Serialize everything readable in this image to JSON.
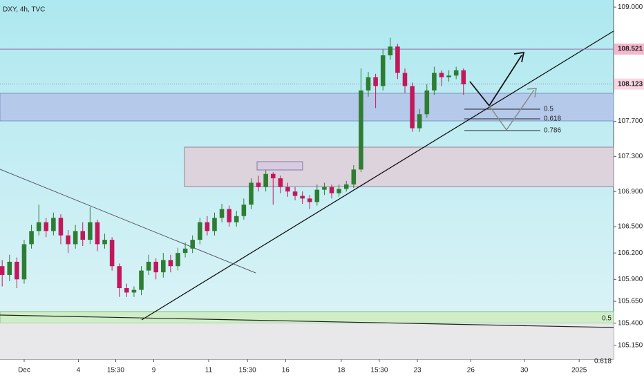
{
  "chart_data": {
    "type": "candlestick",
    "title": "DXY, 4h, TVC",
    "up_color": "#2e7d32",
    "down_color": "#c2185b",
    "grid": false,
    "open": [
      106.05,
      105.95,
      106.1,
      105.9,
      106.3,
      106.45,
      106.55,
      106.45,
      106.6,
      106.4,
      106.3,
      106.45,
      106.35,
      106.55,
      106.3,
      106.35,
      106.05,
      105.8,
      105.75,
      105.78,
      106.0,
      106.1,
      105.98,
      106.12,
      106.05,
      106.2,
      106.25,
      106.35,
      106.55,
      106.45,
      106.6,
      106.7,
      106.55,
      106.62,
      106.75,
      107.0,
      106.95,
      107.1,
      107.05,
      106.95,
      106.9,
      106.85,
      106.82,
      106.78,
      106.92,
      106.95,
      106.88,
      106.93,
      106.98,
      107.15,
      108.05,
      108.2,
      108.1,
      108.45,
      108.55,
      108.25,
      108.1,
      107.62,
      107.78,
      108.05,
      108.25,
      108.2,
      108.22,
      108.28
    ],
    "high": [
      106.12,
      106.18,
      106.15,
      106.35,
      106.52,
      106.75,
      106.6,
      106.66,
      106.64,
      106.46,
      106.52,
      106.55,
      106.72,
      106.58,
      106.42,
      106.38,
      106.08,
      105.85,
      105.82,
      106.05,
      106.18,
      106.14,
      106.2,
      106.18,
      106.26,
      106.32,
      106.4,
      106.6,
      106.62,
      106.66,
      106.76,
      106.74,
      106.68,
      106.82,
      107.05,
      107.08,
      107.14,
      107.12,
      107.08,
      107.0,
      106.95,
      106.9,
      106.86,
      106.98,
      107.0,
      106.98,
      106.98,
      107.02,
      107.2,
      108.3,
      108.26,
      108.24,
      108.52,
      108.65,
      108.58,
      108.3,
      108.14,
      107.84,
      108.12,
      108.32,
      108.28,
      108.28,
      108.32,
      108.3
    ],
    "low": [
      105.82,
      105.88,
      105.8,
      105.85,
      106.25,
      106.4,
      106.38,
      106.4,
      106.3,
      106.2,
      106.25,
      106.28,
      106.3,
      106.22,
      106.25,
      106.0,
      105.7,
      105.7,
      105.7,
      105.72,
      105.95,
      105.9,
      105.92,
      105.98,
      106.0,
      106.15,
      106.2,
      106.3,
      106.4,
      106.4,
      106.55,
      106.5,
      106.5,
      106.58,
      106.7,
      106.9,
      106.9,
      106.75,
      106.88,
      106.84,
      106.8,
      106.76,
      106.7,
      106.74,
      106.86,
      106.82,
      106.84,
      106.9,
      106.94,
      107.12,
      107.98,
      107.85,
      108.05,
      108.4,
      108.18,
      108.02,
      107.58,
      107.58,
      107.74,
      108.0,
      108.1,
      108.15,
      108.18,
      108.0
    ],
    "close": [
      105.95,
      106.1,
      105.9,
      106.3,
      106.45,
      106.55,
      106.45,
      106.6,
      106.4,
      106.3,
      106.45,
      106.35,
      106.55,
      106.3,
      106.35,
      106.05,
      105.8,
      105.75,
      105.78,
      106.0,
      106.1,
      105.98,
      106.12,
      106.05,
      106.2,
      106.25,
      106.35,
      106.55,
      106.45,
      106.6,
      106.7,
      106.55,
      106.62,
      106.75,
      107.0,
      106.95,
      107.1,
      107.05,
      106.95,
      106.9,
      106.85,
      106.82,
      106.78,
      106.92,
      106.95,
      106.88,
      106.93,
      106.98,
      107.15,
      108.05,
      108.2,
      108.1,
      108.45,
      108.55,
      108.25,
      108.1,
      107.62,
      107.78,
      108.05,
      108.25,
      108.2,
      108.22,
      108.28,
      108.12
    ],
    "xlim": [
      -0.3,
      83.5
    ],
    "xticks": [
      {
        "value": 3.0,
        "label": "Dec"
      },
      {
        "value": 10.4,
        "label": "4"
      },
      {
        "value": 15.5,
        "label": "15:30"
      },
      {
        "value": 20.7,
        "label": "9"
      },
      {
        "value": 28.2,
        "label": "11"
      },
      {
        "value": 33.5,
        "label": "15:30"
      },
      {
        "value": 38.7,
        "label": "16"
      },
      {
        "value": 46.3,
        "label": "18"
      },
      {
        "value": 51.5,
        "label": "15:30"
      },
      {
        "value": 56.7,
        "label": "23"
      },
      {
        "value": 64.0,
        "label": "26"
      },
      {
        "value": 71.3,
        "label": "30"
      },
      {
        "value": 78.8,
        "label": "2025"
      }
    ],
    "ylim": [
      104.99,
      109.08
    ],
    "yticks": [
      {
        "value": 109.0,
        "label": "109.000"
      },
      {
        "value": 107.7,
        "label": "107.700"
      },
      {
        "value": 107.3,
        "label": "107.300"
      },
      {
        "value": 106.9,
        "label": "106.900"
      },
      {
        "value": 106.5,
        "label": "106.500"
      },
      {
        "value": 106.2,
        "label": "106.200"
      },
      {
        "value": 105.9,
        "label": "105.900"
      },
      {
        "value": 105.65,
        "label": "105.650"
      },
      {
        "value": 105.4,
        "label": "105.400"
      },
      {
        "value": 105.15,
        "label": "105.150"
      }
    ],
    "price_lines": [
      {
        "value": 108.521,
        "label": "108.521"
      },
      {
        "value": 108.123,
        "label": "108.123"
      }
    ],
    "fib_labels": [
      "0.5",
      "0.618",
      "0.786"
    ],
    "edge_labels": [
      "0.5",
      "0.618"
    ]
  }
}
